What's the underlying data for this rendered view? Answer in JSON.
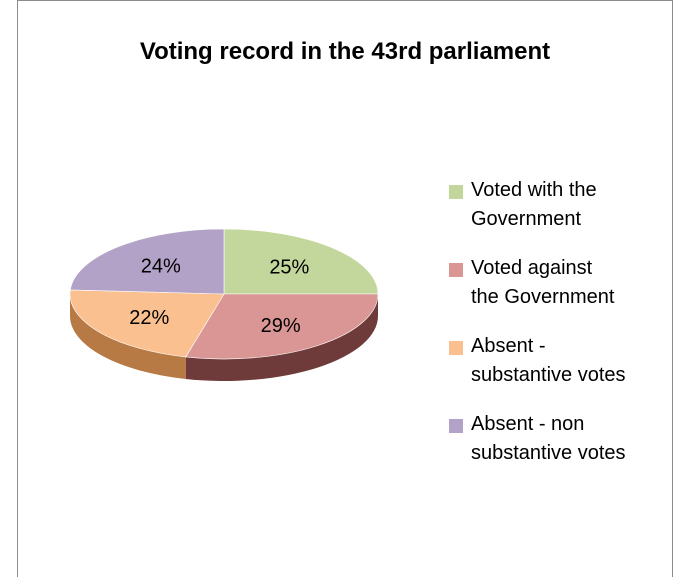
{
  "chart_data": {
    "type": "pie",
    "title": "Voting record in the 43rd parliament",
    "labels": [
      "Voted with the Government",
      "Voted against the Government",
      "Absent - substantive votes",
      "Absent - non substantive votes"
    ],
    "values": [
      25,
      29,
      22,
      24
    ],
    "value_labels": [
      "25%",
      "29%",
      "22%",
      "24%"
    ],
    "colors": [
      "#c3d69b",
      "#d99694",
      "#fac090",
      "#b3a2c7"
    ],
    "side_colors": [
      "#7a8a5c",
      "#6e3b3a",
      "#b87a45",
      "#6f6390"
    ],
    "style": "3d",
    "legend_position": "right"
  },
  "legend": {
    "lines": [
      [
        "Voted with the",
        "Government"
      ],
      [
        "Voted against",
        "the Government"
      ],
      [
        "Absent -",
        "substantive votes"
      ],
      [
        "Absent - non",
        "substantive votes"
      ]
    ]
  }
}
